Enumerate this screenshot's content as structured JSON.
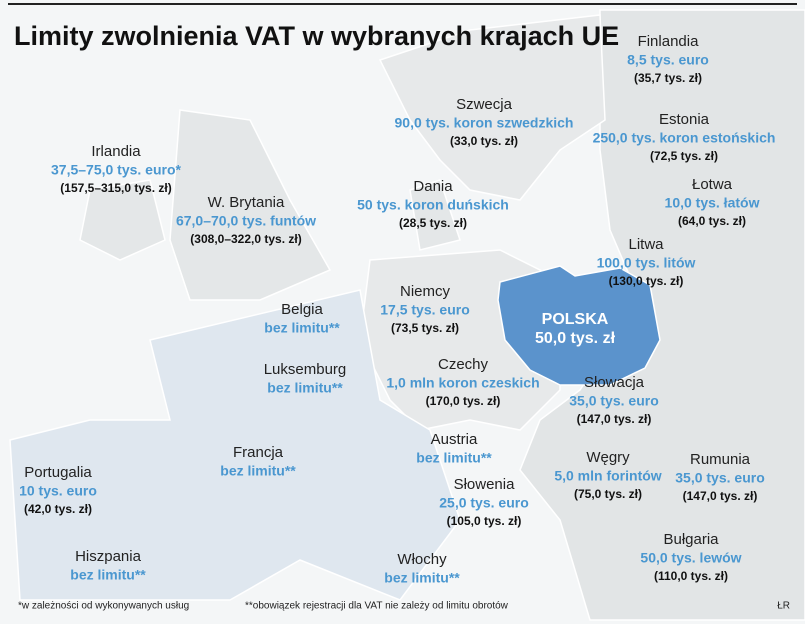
{
  "header": {
    "title": "Limity zwolnienia VAT w wybranych krajach UE"
  },
  "countries": [
    {
      "name": "Finlandia",
      "limit": "8,5 tys. euro",
      "pln": "(35,7 tys. zł)"
    },
    {
      "name": "Szwecja",
      "limit": "90,0 tys. koron szwedzkich",
      "pln": "(33,0 tys. zł)"
    },
    {
      "name": "Estonia",
      "limit": "250,0 tys. koron estońskich",
      "pln": "(72,5 tys. zł)"
    },
    {
      "name": "Irlandia",
      "limit": "37,5–75,0 tys. euro*",
      "pln": "(157,5–315,0 tys. zł)"
    },
    {
      "name": "Łotwa",
      "limit": "10,0 tys. łatów",
      "pln": "(64,0 tys. zł)"
    },
    {
      "name": "Dania",
      "limit": "50 tys. koron duńskich",
      "pln": "(28,5 tys. zł)"
    },
    {
      "name": "W. Brytania",
      "limit": "67,0–70,0 tys. funtów",
      "pln": "(308,0–322,0 tys. zł)"
    },
    {
      "name": "Litwa",
      "limit": "100,0 tys. litów",
      "pln": "(130,0 tys. zł)"
    },
    {
      "name": "Belgia",
      "limit": "bez limitu**"
    },
    {
      "name": "Niemcy",
      "limit": "17,5 tys. euro",
      "pln": "(73,5 tys. zł)"
    },
    {
      "name": "POLSKA",
      "limit": "50,0 tys. zł"
    },
    {
      "name": "Luksemburg",
      "limit": "bez limitu**"
    },
    {
      "name": "Czechy",
      "limit": "1,0 mln koron czeskich",
      "pln": "(170,0 tys. zł)"
    },
    {
      "name": "Słowacja",
      "limit": "35,0 tys. euro",
      "pln": "(147,0 tys. zł)"
    },
    {
      "name": "Austria",
      "limit": "bez limitu**"
    },
    {
      "name": "Francja",
      "limit": "bez limitu**"
    },
    {
      "name": "Węgry",
      "limit": "5,0 mln forintów",
      "pln": "(75,0 tys. zł)"
    },
    {
      "name": "Rumunia",
      "limit": "35,0 tys. euro",
      "pln": "(147,0 tys. zł)"
    },
    {
      "name": "Portugalia",
      "limit": "10 tys. euro",
      "pln": "(42,0 tys. zł)"
    },
    {
      "name": "Słowenia",
      "limit": "25,0 tys. euro",
      "pln": "(105,0 tys. zł)"
    },
    {
      "name": "Hiszpania",
      "limit": "bez limitu**"
    },
    {
      "name": "Bułgaria",
      "limit": "50,0 tys. lewów",
      "pln": "(110,0 tys. zł)"
    },
    {
      "name": "Włochy",
      "limit": "bez limitu**"
    }
  ],
  "footnotes": [
    "*w zależności od wykonywanych usług",
    "**obowiązek rejestracji dla VAT nie zależy od limitu obrotów"
  ],
  "credit": "ŁR"
}
